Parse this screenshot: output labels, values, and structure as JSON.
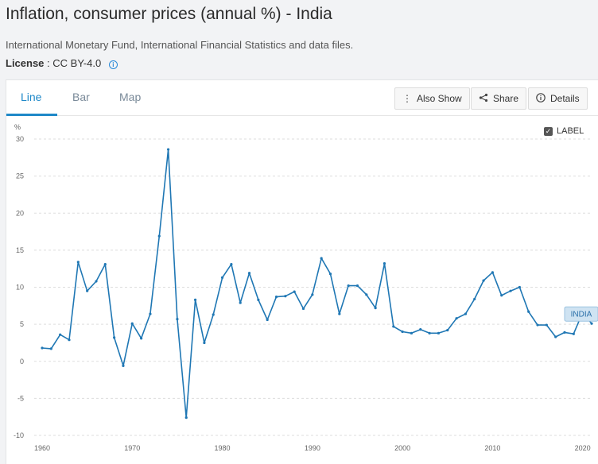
{
  "header": {
    "title": "Inflation, consumer prices (annual %) - India",
    "source": "International Monetary Fund, International Financial Statistics and data files.",
    "license_label": "License",
    "license_value": ": CC BY-4.0"
  },
  "tabs": [
    {
      "label": "Line",
      "active": true
    },
    {
      "label": "Bar",
      "active": false
    },
    {
      "label": "Map",
      "active": false
    }
  ],
  "toolbar": {
    "also_show": "Also Show",
    "share": "Share",
    "details": "Details"
  },
  "label_toggle": {
    "label": "LABEL",
    "checked": true
  },
  "colors": {
    "line": "#1f77b4",
    "accent": "#1e88c8",
    "grid": "#dddddd",
    "tag_bg": "#cfe3f2"
  },
  "chart_data": {
    "type": "line",
    "title": "Inflation, consumer prices (annual %) - India",
    "xlabel": "",
    "ylabel": "%",
    "xlim": [
      1960,
      2021
    ],
    "ylim": [
      -10,
      30
    ],
    "yticks": [
      -10,
      -5,
      0,
      5,
      10,
      15,
      20,
      25,
      30
    ],
    "xticks": [
      1960,
      1970,
      1980,
      1990,
      2000,
      2010,
      2020
    ],
    "grid": true,
    "series": [
      {
        "name": "INDIA",
        "x": [
          1960,
          1961,
          1962,
          1963,
          1964,
          1965,
          1966,
          1967,
          1968,
          1969,
          1970,
          1971,
          1972,
          1973,
          1974,
          1975,
          1976,
          1977,
          1978,
          1979,
          1980,
          1981,
          1982,
          1983,
          1984,
          1985,
          1986,
          1987,
          1988,
          1989,
          1990,
          1991,
          1992,
          1993,
          1994,
          1995,
          1996,
          1997,
          1998,
          1999,
          2000,
          2001,
          2002,
          2003,
          2004,
          2005,
          2006,
          2007,
          2008,
          2009,
          2010,
          2011,
          2012,
          2013,
          2014,
          2015,
          2016,
          2017,
          2018,
          2019,
          2020,
          2021
        ],
        "values": [
          1.8,
          1.7,
          3.6,
          2.9,
          13.4,
          9.5,
          10.8,
          13.1,
          3.2,
          -0.6,
          5.1,
          3.1,
          6.4,
          16.9,
          28.6,
          5.7,
          -7.6,
          8.3,
          2.5,
          6.3,
          11.3,
          13.1,
          7.9,
          11.9,
          8.3,
          5.6,
          8.7,
          8.8,
          9.4,
          7.1,
          9.0,
          13.9,
          11.8,
          6.4,
          10.2,
          10.2,
          9.0,
          7.2,
          13.2,
          4.7,
          4.0,
          3.8,
          4.3,
          3.8,
          3.8,
          4.2,
          5.8,
          6.4,
          8.4,
          10.9,
          12.0,
          8.9,
          9.5,
          10.0,
          6.7,
          4.9,
          4.9,
          3.3,
          3.9,
          3.7,
          6.6,
          5.1
        ]
      }
    ]
  }
}
